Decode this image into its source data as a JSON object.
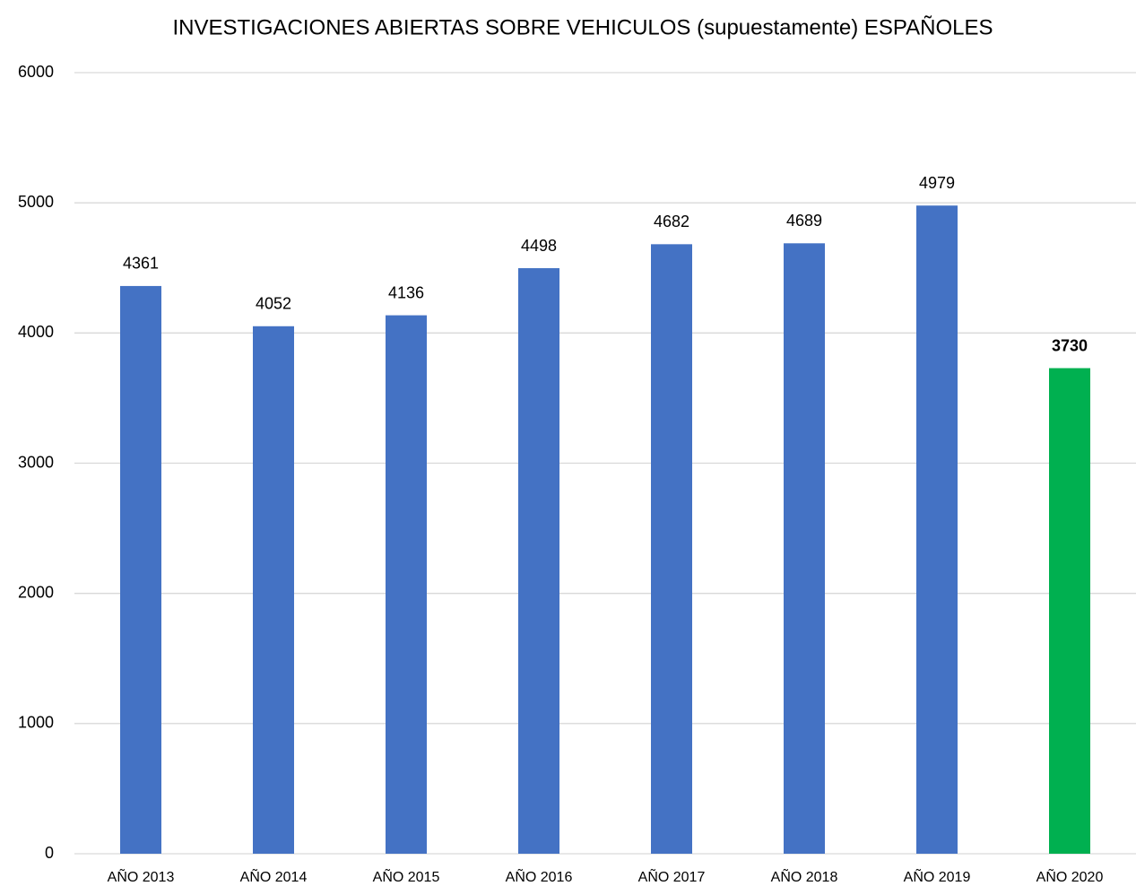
{
  "chart_data": {
    "type": "bar",
    "title": "INVESTIGACIONES ABIERTAS SOBRE VEHICULOS (supuestamente) ESPAÑOLES",
    "categories": [
      "AÑO 2013",
      "AÑO 2014",
      "AÑO 2015",
      "AÑO 2016",
      "AÑO 2017",
      "AÑO 2018",
      "AÑO 2019",
      "AÑO 2020"
    ],
    "values": [
      4361,
      4052,
      4136,
      4498,
      4682,
      4689,
      4979,
      3730
    ],
    "colors": [
      "#4472c4",
      "#4472c4",
      "#4472c4",
      "#4472c4",
      "#4472c4",
      "#4472c4",
      "#4472c4",
      "#00b050"
    ],
    "ylim": [
      0,
      6000
    ],
    "yticks": [
      0,
      1000,
      2000,
      3000,
      4000,
      5000,
      6000
    ],
    "grid": true
  }
}
